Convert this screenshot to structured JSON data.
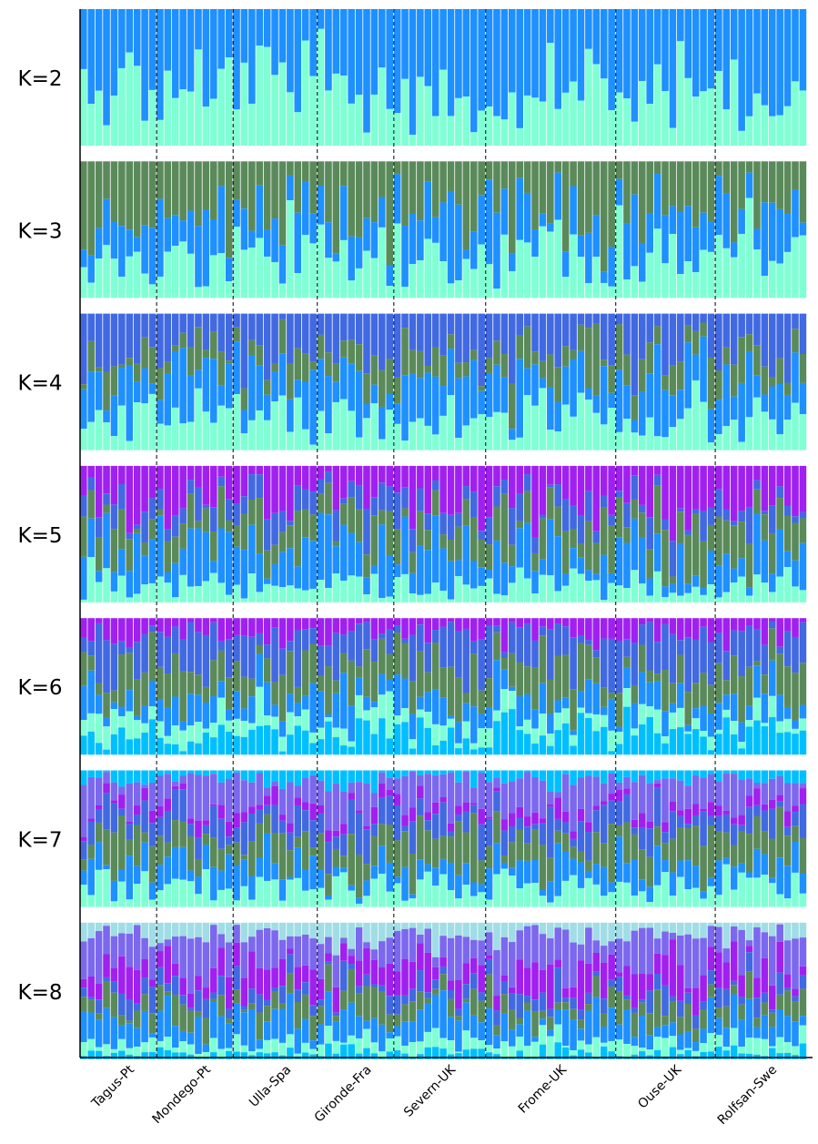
{
  "chart_data": {
    "type": "bar",
    "subtype": "stacked-admixture",
    "num_individuals": 95,
    "populations": [
      {
        "name": "Tagus-Pt",
        "n": 10
      },
      {
        "name": "Mondego-Pt",
        "n": 10
      },
      {
        "name": "Ulla-Spa",
        "n": 11
      },
      {
        "name": "Gironde-Fra",
        "n": 10
      },
      {
        "name": "Severn-UK",
        "n": 12
      },
      {
        "name": "Frome-UK",
        "n": 17
      },
      {
        "name": "Ouse-UK",
        "n": 13
      },
      {
        "name": "Rolfsan-Swe",
        "n": 12
      }
    ],
    "panels": [
      {
        "label": "K=2",
        "k": 2
      },
      {
        "label": "K=3",
        "k": 3
      },
      {
        "label": "K=4",
        "k": 4
      },
      {
        "label": "K=5",
        "k": 5
      },
      {
        "label": "K=6",
        "k": 6
      },
      {
        "label": "K=7",
        "k": 7
      },
      {
        "label": "K=8",
        "k": 8
      }
    ],
    "cluster_colors": [
      "#7fffd4",
      "#1e90ff",
      "#5a8a5a",
      "#4169e1",
      "#a020f0",
      "#00bfff",
      "#7b68ee",
      "#a0dde6"
    ],
    "ylim": [
      0,
      1
    ],
    "xlabel": "",
    "ylabel": "",
    "title": ""
  }
}
